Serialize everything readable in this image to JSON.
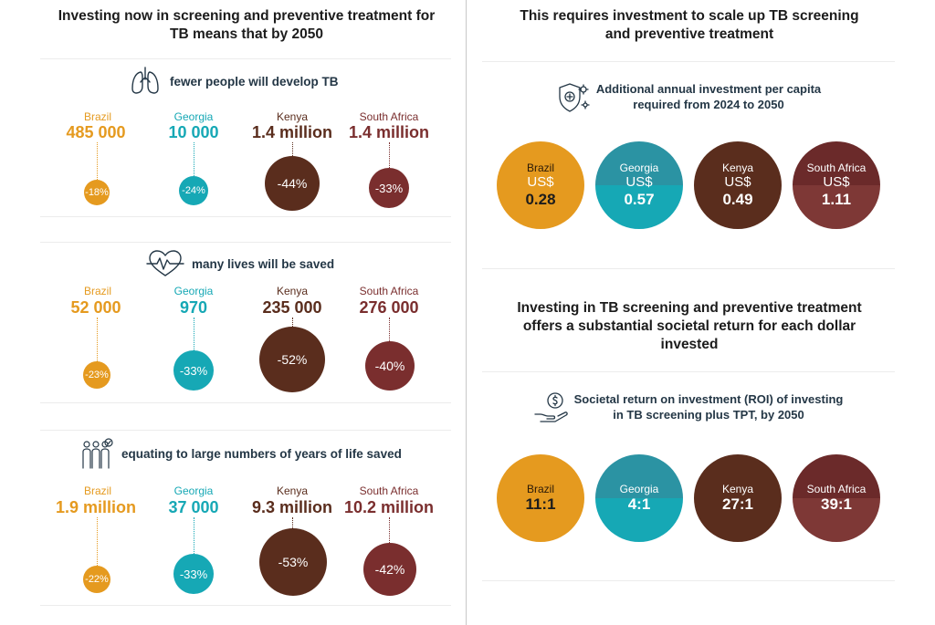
{
  "colors": {
    "brazil": "#e59a1f",
    "georgia": "#16a8b5",
    "kenya": "#5a2d1d",
    "south_africa": "#7a2e2e",
    "text_dark": "#243746"
  },
  "left": {
    "title": "Investing now in screening and preventive treatment for TB means that by 2050"
  },
  "right": {
    "title": "This requires investment to scale up TB screening and preventive treatment",
    "roi_title": "Investing in TB screening and preventive treatment offers a substantial societal return for each dollar invested"
  },
  "chart_data": [
    {
      "type": "bubble",
      "title": "fewer people will develop TB",
      "icon": "lungs-icon",
      "categories": [
        "Brazil",
        "Georgia",
        "Kenya",
        "South Africa"
      ],
      "value_labels": [
        "485 000",
        "10 000",
        "1.4 million",
        "1.4 million"
      ],
      "percent_labels": [
        "-18%",
        "-24%",
        "-44%",
        "-33%"
      ],
      "percent_values": [
        -18,
        -24,
        -44,
        -33
      ]
    },
    {
      "type": "bubble",
      "title": "many lives will be saved",
      "icon": "heart-pulse-icon",
      "categories": [
        "Brazil",
        "Georgia",
        "Kenya",
        "South Africa"
      ],
      "value_labels": [
        "52 000",
        "970",
        "235 000",
        "276 000"
      ],
      "percent_labels": [
        "-23%",
        "-33%",
        "-52%",
        "-40%"
      ],
      "percent_values": [
        -23,
        -33,
        -52,
        -40
      ]
    },
    {
      "type": "bubble",
      "title": "equating to large numbers of years of life saved",
      "icon": "people-group-icon",
      "categories": [
        "Brazil",
        "Georgia",
        "Kenya",
        "South Africa"
      ],
      "value_labels": [
        "1.9 million",
        "37 000",
        "9.3 million",
        "10.2 million"
      ],
      "percent_labels": [
        "-22%",
        "-33%",
        "-53%",
        "-42%"
      ],
      "percent_values": [
        -22,
        -33,
        -53,
        -42
      ]
    },
    {
      "type": "bubble",
      "title": "Additional annual investment per capita required from 2024 to 2050",
      "icon": "shield-virus-icon",
      "categories": [
        "Brazil",
        "Georgia",
        "Kenya",
        "South Africa"
      ],
      "currency": "US$",
      "values": [
        0.28,
        0.57,
        0.49,
        1.11
      ],
      "value_labels": [
        "0.28",
        "0.57",
        "0.49",
        "1.11"
      ]
    },
    {
      "type": "bubble",
      "title": "Societal return on investment (ROI) of investing in TB screening plus TPT, by 2050",
      "icon": "money-hand-icon",
      "categories": [
        "Brazil",
        "Georgia",
        "Kenya",
        "South Africa"
      ],
      "values": [
        11,
        4,
        27,
        39
      ],
      "value_labels": [
        "11:1",
        "4:1",
        "27:1",
        "39:1"
      ]
    }
  ]
}
